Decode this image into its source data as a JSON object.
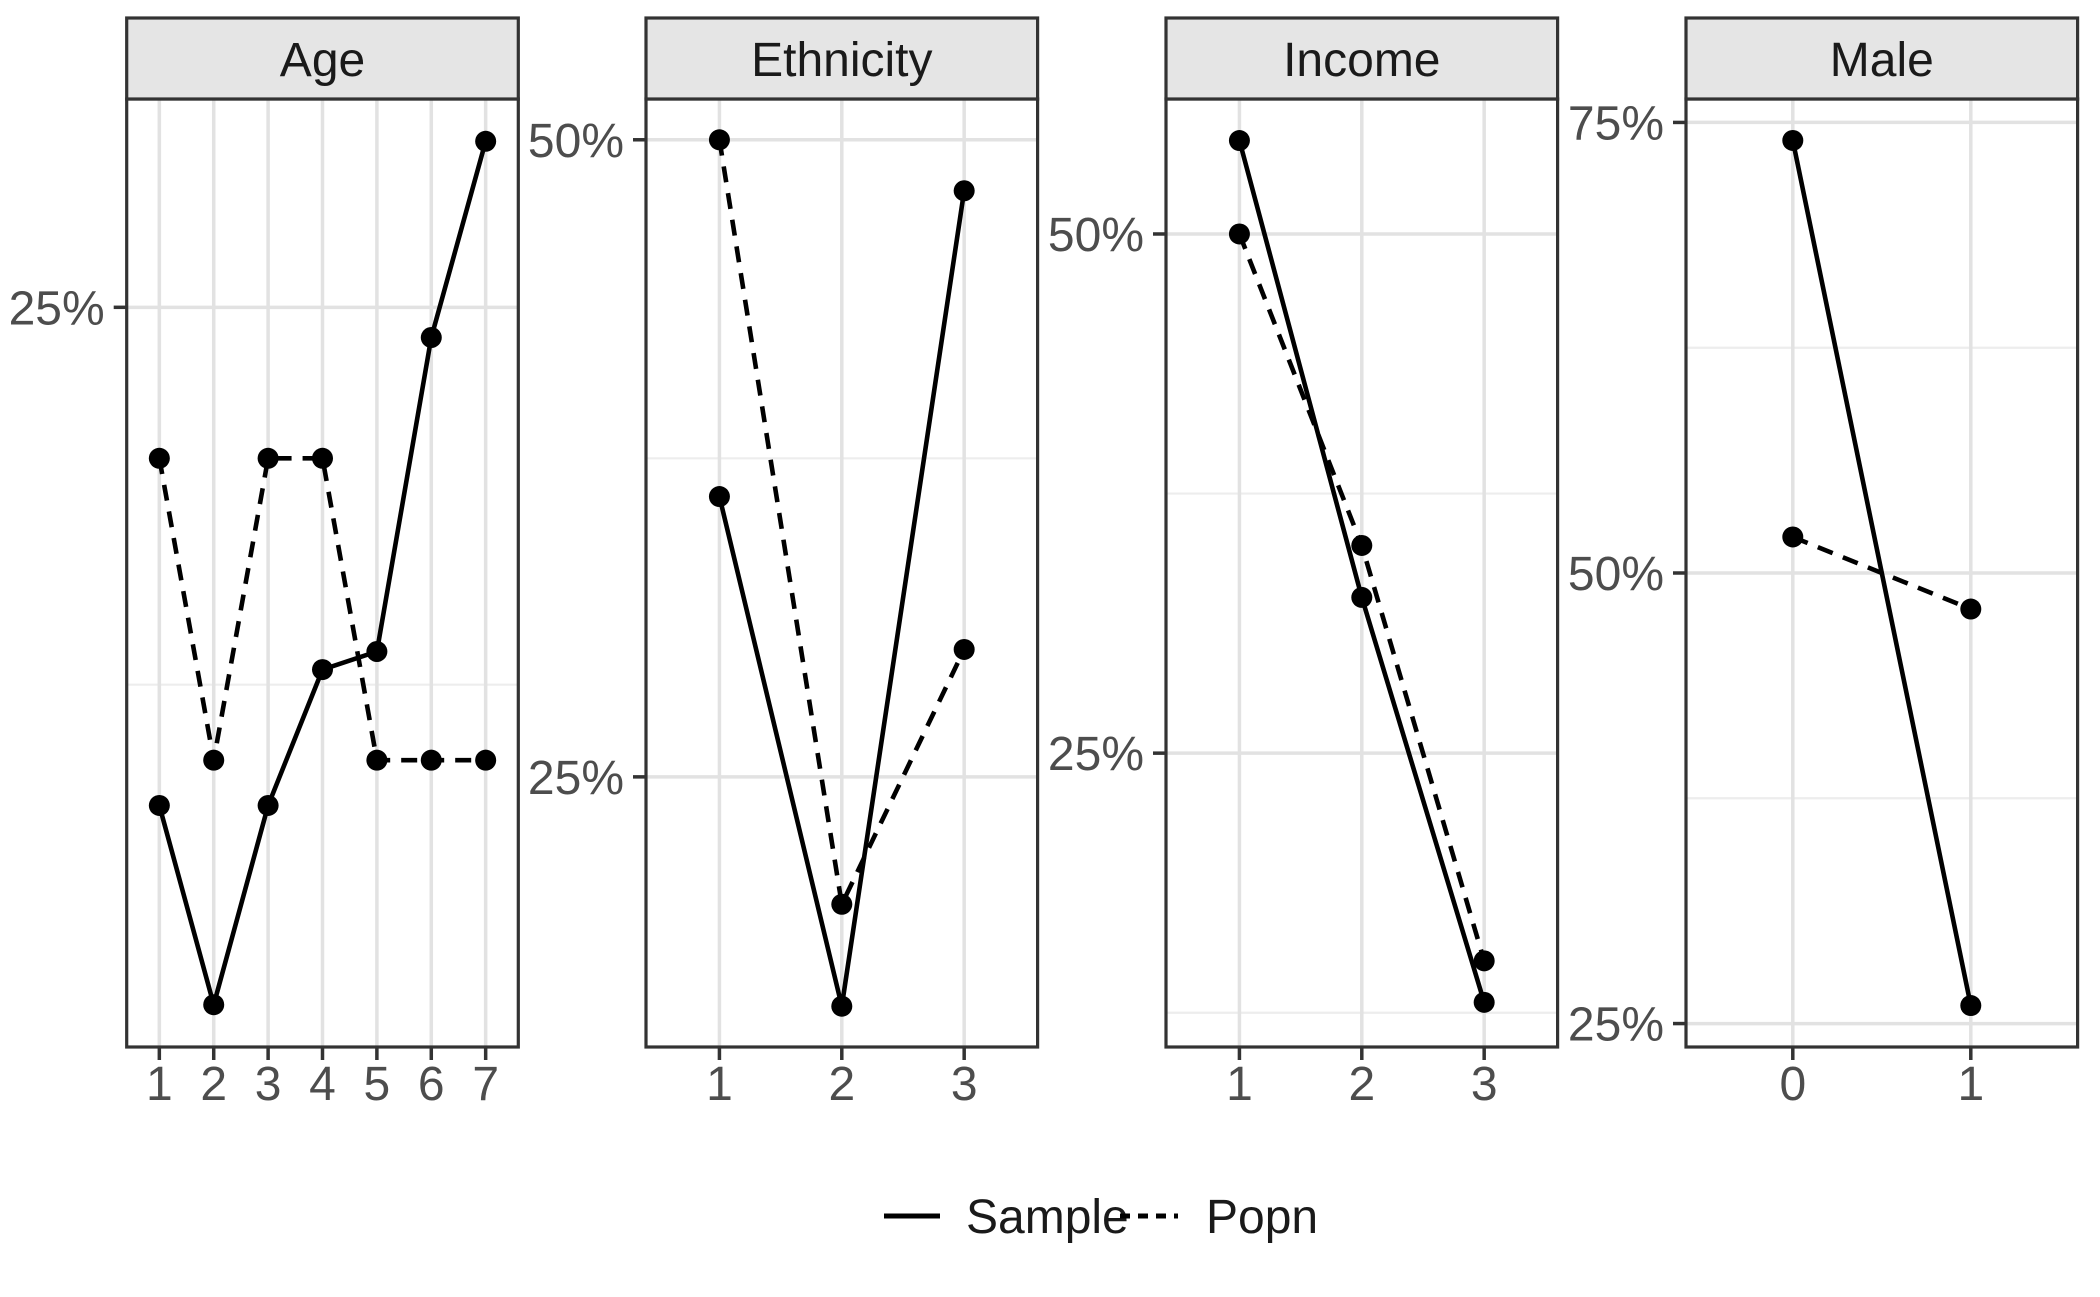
{
  "colors": {
    "line": "#000000",
    "point": "#000000",
    "panel_border": "#333333",
    "strip_fill": "#e5e5e5",
    "strip_border": "#333333",
    "grid_major": "#e2e2e2",
    "grid_minor": "#ededed",
    "tick": "#333333",
    "tick_label": "#4d4d4d",
    "strip_text": "#1a1a1a",
    "legend_text": "#1a1a1a",
    "background": "#ffffff"
  },
  "legend": {
    "entries": [
      {
        "label": "Sample",
        "linetype": "solid"
      },
      {
        "label": "Popn",
        "linetype": "dashed"
      }
    ]
  },
  "chart_data": [
    {
      "type": "line",
      "panel": "Age",
      "categories": [
        "1",
        "2",
        "3",
        "4",
        "5",
        "6",
        "7"
      ],
      "series": [
        {
          "name": "Sample",
          "linetype": "solid",
          "values": [
            8.5,
            1.9,
            8.5,
            13.0,
            13.6,
            24.0,
            30.5
          ]
        },
        {
          "name": "Popn",
          "linetype": "dashed",
          "values": [
            20,
            10,
            20,
            20,
            10,
            10,
            10
          ]
        }
      ],
      "ylabel": "",
      "y_breaks": [
        {
          "value": 25,
          "label": "25%"
        }
      ],
      "y_minor_breaks": [
        12.5
      ],
      "ylim": [
        0.5,
        31.9
      ],
      "grid": true,
      "legend_position": "bottom"
    },
    {
      "type": "line",
      "panel": "Ethnicity",
      "categories": [
        "1",
        "2",
        "3"
      ],
      "series": [
        {
          "name": "Sample",
          "linetype": "solid",
          "values": [
            36,
            16,
            48
          ]
        },
        {
          "name": "Popn",
          "linetype": "dashed",
          "values": [
            50,
            20,
            30
          ]
        }
      ],
      "ylabel": "",
      "y_breaks": [
        {
          "value": 50,
          "label": "50%"
        },
        {
          "value": 25,
          "label": "25%"
        }
      ],
      "y_minor_breaks": [
        37.5
      ],
      "ylim": [
        14.4,
        51.6
      ],
      "grid": true,
      "legend_position": "bottom"
    },
    {
      "type": "line",
      "panel": "Income",
      "categories": [
        "1",
        "2",
        "3"
      ],
      "series": [
        {
          "name": "Sample",
          "linetype": "solid",
          "values": [
            54.5,
            32.5,
            13.0
          ]
        },
        {
          "name": "Popn",
          "linetype": "dashed",
          "values": [
            50,
            35,
            15
          ]
        }
      ],
      "ylabel": "",
      "y_breaks": [
        {
          "value": 50,
          "label": "50%"
        },
        {
          "value": 25,
          "label": "25%"
        }
      ],
      "y_minor_breaks": [
        12.5,
        37.5
      ],
      "ylim": [
        10.85,
        56.5
      ],
      "grid": true,
      "legend_position": "bottom"
    },
    {
      "type": "line",
      "panel": "Male",
      "categories": [
        "0",
        "1"
      ],
      "series": [
        {
          "name": "Sample",
          "linetype": "solid",
          "values": [
            74,
            26
          ]
        },
        {
          "name": "Popn",
          "linetype": "dashed",
          "values": [
            52,
            48
          ]
        }
      ],
      "ylabel": "",
      "y_breaks": [
        {
          "value": 75,
          "label": "75%"
        },
        {
          "value": 50,
          "label": "50%"
        },
        {
          "value": 25,
          "label": "25%"
        }
      ],
      "y_minor_breaks": [
        37.5,
        62.5
      ],
      "ylim": [
        23.7,
        76.3
      ],
      "grid": true,
      "legend_position": "bottom"
    }
  ]
}
